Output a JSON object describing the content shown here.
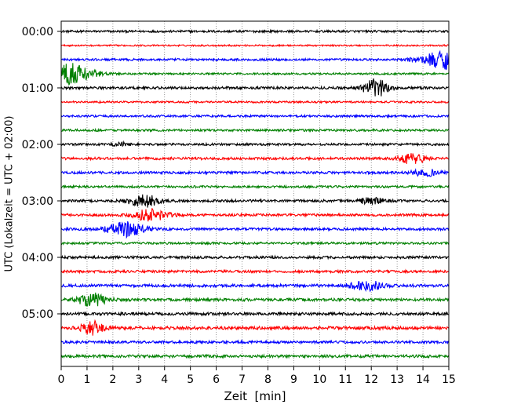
{
  "chart_data": {
    "type": "line",
    "title": "",
    "xlabel": "Zeit  [min]",
    "ylabel": "UTC (Lokalzeit = UTC + 02:00)",
    "xlim": [
      0,
      15
    ],
    "x_ticks": [
      "0",
      "1",
      "2",
      "3",
      "4",
      "5",
      "6",
      "7",
      "8",
      "9",
      "10",
      "11",
      "12",
      "13",
      "14",
      "15"
    ],
    "y_tick_labels": [
      "00:00",
      "01:00",
      "02:00",
      "03:00",
      "04:00",
      "05:00"
    ],
    "grid": "vertical dotted",
    "trace_colors": [
      "#000000",
      "#ff0000",
      "#0000ff",
      "#008000"
    ],
    "rows": [
      {
        "time": "00:00",
        "color": "#000000",
        "noise": 0.07,
        "events": []
      },
      {
        "time": "00:15",
        "color": "#ff0000",
        "noise": 0.05,
        "events": []
      },
      {
        "time": "00:30",
        "color": "#0000ff",
        "noise": 0.07,
        "events": [
          {
            "t": 15.0,
            "amp": 0.6,
            "width": 1.0
          }
        ]
      },
      {
        "time": "00:45",
        "color": "#008000",
        "noise": 0.06,
        "events": [
          {
            "t": 0.1,
            "amp": 0.75,
            "width": 1.0
          }
        ]
      },
      {
        "time": "01:00",
        "color": "#000000",
        "noise": 0.08,
        "events": [
          {
            "t": 12.2,
            "amp": 0.55,
            "width": 0.5
          }
        ]
      },
      {
        "time": "01:15",
        "color": "#ff0000",
        "noise": 0.06,
        "events": []
      },
      {
        "time": "01:30",
        "color": "#0000ff",
        "noise": 0.07,
        "events": []
      },
      {
        "time": "01:45",
        "color": "#008000",
        "noise": 0.07,
        "events": []
      },
      {
        "time": "02:00",
        "color": "#000000",
        "noise": 0.07,
        "events": [
          {
            "t": 2.3,
            "amp": 0.12,
            "width": 0.3
          }
        ]
      },
      {
        "time": "02:15",
        "color": "#ff0000",
        "noise": 0.08,
        "events": [
          {
            "t": 13.6,
            "amp": 0.35,
            "width": 0.45
          }
        ]
      },
      {
        "time": "02:30",
        "color": "#0000ff",
        "noise": 0.08,
        "events": [
          {
            "t": 14.1,
            "amp": 0.2,
            "width": 0.5
          }
        ]
      },
      {
        "time": "02:45",
        "color": "#008000",
        "noise": 0.07,
        "events": []
      },
      {
        "time": "03:00",
        "color": "#000000",
        "noise": 0.08,
        "events": [
          {
            "t": 3.2,
            "amp": 0.4,
            "width": 0.55
          },
          {
            "t": 12.0,
            "amp": 0.22,
            "width": 0.45
          }
        ]
      },
      {
        "time": "03:15",
        "color": "#ff0000",
        "noise": 0.08,
        "events": [
          {
            "t": 3.5,
            "amp": 0.38,
            "width": 0.65
          }
        ]
      },
      {
        "time": "03:30",
        "color": "#0000ff",
        "noise": 0.08,
        "events": [
          {
            "t": 2.5,
            "amp": 0.45,
            "width": 0.7
          }
        ]
      },
      {
        "time": "03:45",
        "color": "#008000",
        "noise": 0.07,
        "events": []
      },
      {
        "time": "04:00",
        "color": "#000000",
        "noise": 0.08,
        "events": []
      },
      {
        "time": "04:15",
        "color": "#ff0000",
        "noise": 0.08,
        "events": []
      },
      {
        "time": "04:30",
        "color": "#0000ff",
        "noise": 0.09,
        "events": [
          {
            "t": 11.8,
            "amp": 0.3,
            "width": 0.6
          }
        ]
      },
      {
        "time": "04:45",
        "color": "#008000",
        "noise": 0.09,
        "events": [
          {
            "t": 1.2,
            "amp": 0.4,
            "width": 0.55
          }
        ]
      },
      {
        "time": "05:00",
        "color": "#000000",
        "noise": 0.09,
        "events": []
      },
      {
        "time": "05:15",
        "color": "#ff0000",
        "noise": 0.1,
        "events": [
          {
            "t": 1.2,
            "amp": 0.4,
            "width": 0.4
          }
        ]
      },
      {
        "time": "05:30",
        "color": "#0000ff",
        "noise": 0.08,
        "events": []
      },
      {
        "time": "05:45",
        "color": "#008000",
        "noise": 0.09,
        "events": []
      }
    ]
  }
}
